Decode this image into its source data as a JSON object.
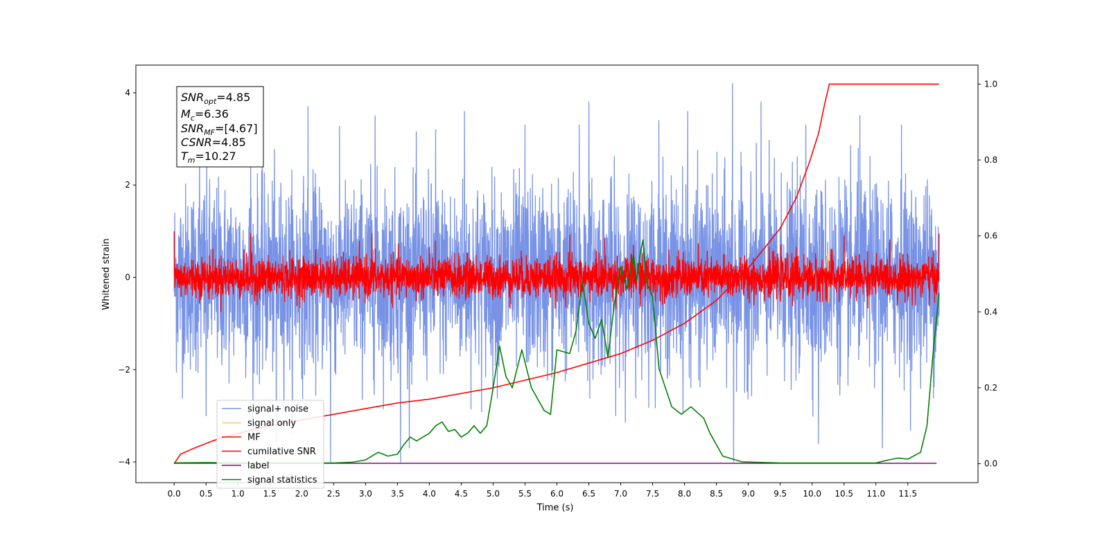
{
  "chart_data": {
    "type": "line",
    "xlabel": "Time (s)",
    "ylabel": "Whitened strain",
    "xlim": [
      -0.6,
      12.6
    ],
    "ylim": [
      -4.45,
      4.6
    ],
    "y2lim": [
      -0.05,
      1.05
    ],
    "x_ticks": [
      0.0,
      0.5,
      1.0,
      1.5,
      2.0,
      2.5,
      3.0,
      3.5,
      4.0,
      4.5,
      5.0,
      5.5,
      6.0,
      6.5,
      7.0,
      7.5,
      8.0,
      8.5,
      9.0,
      9.5,
      10.0,
      10.5,
      11.0,
      11.5
    ],
    "x_tick_labels": [
      "0.0",
      "0.5",
      "1.0",
      "1.5",
      "2.0",
      "2.5",
      "3.0",
      "3.5",
      "4.0",
      "4.5",
      "5.0",
      "5.5",
      "6.0",
      "6.5",
      "7.0",
      "7.5",
      "8.0",
      "8.5",
      "9.0",
      "9.5",
      "10.0",
      "10.5",
      "11.0",
      "11.5"
    ],
    "y_ticks": [
      -4,
      -2,
      0,
      2,
      4
    ],
    "y_tick_labels": [
      "−4",
      "−2",
      "0",
      "2",
      "4"
    ],
    "y2_ticks": [
      0.0,
      0.2,
      0.4,
      0.6,
      0.8,
      1.0
    ],
    "y2_tick_labels": [
      "0.0",
      "0.2",
      "0.4",
      "0.6",
      "0.8",
      "1.0"
    ],
    "grid": false,
    "legend_position": "lower-left",
    "annotation": {
      "snr_opt": {
        "var": "SNR",
        "sub": "opt",
        "value": "=4.85"
      },
      "mc": {
        "var": "M",
        "sub": "c",
        "value": "=6.36"
      },
      "snr_mf": {
        "var": "SNR",
        "sub": "MF",
        "value": "=[4.67]"
      },
      "csnr": {
        "var": "CSNR",
        "sub": "",
        "value": "=4.85"
      },
      "tm": {
        "var": "T",
        "sub": "m",
        "value": "=10.27"
      }
    },
    "series": [
      {
        "name": "signal+ noise",
        "color": "#7893e6",
        "axis": "left",
        "noise": {
          "x_start": 0.0,
          "x_end": 11.99,
          "samples": 3400,
          "sigma": 1.0,
          "peaks": [
            [
              0.4,
              2.9
            ],
            [
              0.5,
              -3.0
            ],
            [
              1.2,
              3.1
            ],
            [
              1.6,
              -3.6
            ],
            [
              2.1,
              3.7
            ],
            [
              2.45,
              -4.0
            ],
            [
              3.15,
              3.5
            ],
            [
              3.55,
              -4.0
            ],
            [
              4.1,
              3.2
            ],
            [
              4.55,
              3.6
            ],
            [
              5.5,
              3.3
            ],
            [
              6.35,
              3.3
            ],
            [
              6.5,
              3.8
            ],
            [
              7.6,
              3.4
            ],
            [
              8.05,
              3.6
            ],
            [
              8.75,
              4.2
            ],
            [
              8.77,
              -4.0
            ],
            [
              9.2,
              3.8
            ],
            [
              9.9,
              3.3
            ],
            [
              10.1,
              -3.6
            ],
            [
              10.75,
              3.5
            ],
            [
              11.1,
              -3.7
            ],
            [
              11.4,
              3.3
            ]
          ]
        }
      },
      {
        "name": "signal only",
        "color": "#fdc77c",
        "axis": "left",
        "points": [
          [
            9.6,
            0.0
          ],
          [
            9.8,
            0.05
          ],
          [
            9.95,
            -0.1
          ],
          [
            10.05,
            0.15
          ],
          [
            10.15,
            -0.2
          ],
          [
            10.22,
            0.35
          ],
          [
            10.25,
            0.5
          ],
          [
            10.26,
            -0.55
          ],
          [
            10.27,
            0.0
          ]
        ]
      },
      {
        "name": "MF",
        "color": "#ff0000",
        "axis": "left",
        "noise": {
          "x_start": 0.0,
          "x_end": 11.99,
          "samples": 3400,
          "sigma": 0.22,
          "peaks": [
            [
              0.0,
              1.0
            ],
            [
              1.2,
              0.95
            ],
            [
              3.1,
              0.95
            ],
            [
              4.0,
              0.65
            ],
            [
              6.2,
              0.92
            ],
            [
              6.75,
              0.85
            ],
            [
              7.2,
              0.7
            ],
            [
              9.75,
              0.65
            ],
            [
              10.5,
              0.9
            ],
            [
              11.99,
              0.95
            ]
          ]
        }
      },
      {
        "name": "cumilative SNR",
        "color": "#ff0000",
        "axis": "right",
        "points": [
          [
            0.0,
            0.0
          ],
          [
            0.1,
            0.025
          ],
          [
            0.3,
            0.04
          ],
          [
            0.6,
            0.06
          ],
          [
            1.0,
            0.08
          ],
          [
            1.5,
            0.1
          ],
          [
            2.0,
            0.115
          ],
          [
            2.5,
            0.13
          ],
          [
            3.0,
            0.145
          ],
          [
            3.5,
            0.16
          ],
          [
            4.0,
            0.17
          ],
          [
            4.5,
            0.185
          ],
          [
            5.0,
            0.2
          ],
          [
            5.5,
            0.22
          ],
          [
            6.0,
            0.24
          ],
          [
            6.5,
            0.265
          ],
          [
            7.0,
            0.29
          ],
          [
            7.5,
            0.325
          ],
          [
            8.0,
            0.37
          ],
          [
            8.5,
            0.43
          ],
          [
            9.0,
            0.515
          ],
          [
            9.5,
            0.62
          ],
          [
            9.75,
            0.7
          ],
          [
            9.95,
            0.79
          ],
          [
            10.1,
            0.87
          ],
          [
            10.2,
            0.95
          ],
          [
            10.27,
            1.0
          ],
          [
            11.99,
            1.0
          ]
        ]
      },
      {
        "name": "label",
        "color": "#800080",
        "axis": "left",
        "points": [
          [
            0.0,
            -4.03
          ],
          [
            11.95,
            -4.03
          ]
        ]
      },
      {
        "name": "signal statistics",
        "color": "#008000",
        "axis": "right",
        "points": [
          [
            0.0,
            0.002
          ],
          [
            0.5,
            0.003
          ],
          [
            1.0,
            0.002
          ],
          [
            1.5,
            0.002
          ],
          [
            2.0,
            0.002
          ],
          [
            2.5,
            0.002
          ],
          [
            2.8,
            0.004
          ],
          [
            3.0,
            0.01
          ],
          [
            3.2,
            0.03
          ],
          [
            3.35,
            0.02
          ],
          [
            3.5,
            0.025
          ],
          [
            3.6,
            0.05
          ],
          [
            3.7,
            0.07
          ],
          [
            3.8,
            0.06
          ],
          [
            3.9,
            0.07
          ],
          [
            4.0,
            0.08
          ],
          [
            4.1,
            0.1
          ],
          [
            4.2,
            0.11
          ],
          [
            4.3,
            0.085
          ],
          [
            4.4,
            0.09
          ],
          [
            4.5,
            0.07
          ],
          [
            4.6,
            0.08
          ],
          [
            4.7,
            0.1
          ],
          [
            4.8,
            0.08
          ],
          [
            4.9,
            0.1
          ],
          [
            5.0,
            0.2
          ],
          [
            5.1,
            0.31
          ],
          [
            5.2,
            0.23
          ],
          [
            5.3,
            0.2
          ],
          [
            5.45,
            0.3
          ],
          [
            5.6,
            0.2
          ],
          [
            5.8,
            0.14
          ],
          [
            5.9,
            0.13
          ],
          [
            6.0,
            0.3
          ],
          [
            6.2,
            0.29
          ],
          [
            6.3,
            0.35
          ],
          [
            6.4,
            0.48
          ],
          [
            6.5,
            0.37
          ],
          [
            6.6,
            0.33
          ],
          [
            6.7,
            0.38
          ],
          [
            6.8,
            0.28
          ],
          [
            6.9,
            0.42
          ],
          [
            7.0,
            0.52
          ],
          [
            7.1,
            0.46
          ],
          [
            7.2,
            0.55
          ],
          [
            7.25,
            0.48
          ],
          [
            7.3,
            0.55
          ],
          [
            7.35,
            0.59
          ],
          [
            7.4,
            0.48
          ],
          [
            7.5,
            0.44
          ],
          [
            7.6,
            0.25
          ],
          [
            7.8,
            0.15
          ],
          [
            7.95,
            0.13
          ],
          [
            8.1,
            0.15
          ],
          [
            8.3,
            0.12
          ],
          [
            8.4,
            0.08
          ],
          [
            8.6,
            0.02
          ],
          [
            8.9,
            0.005
          ],
          [
            9.5,
            0.002
          ],
          [
            10.5,
            0.002
          ],
          [
            11.0,
            0.002
          ],
          [
            11.2,
            0.01
          ],
          [
            11.35,
            0.015
          ],
          [
            11.5,
            0.012
          ],
          [
            11.7,
            0.03
          ],
          [
            11.8,
            0.1
          ],
          [
            11.9,
            0.3
          ],
          [
            11.99,
            0.45
          ]
        ]
      }
    ]
  }
}
